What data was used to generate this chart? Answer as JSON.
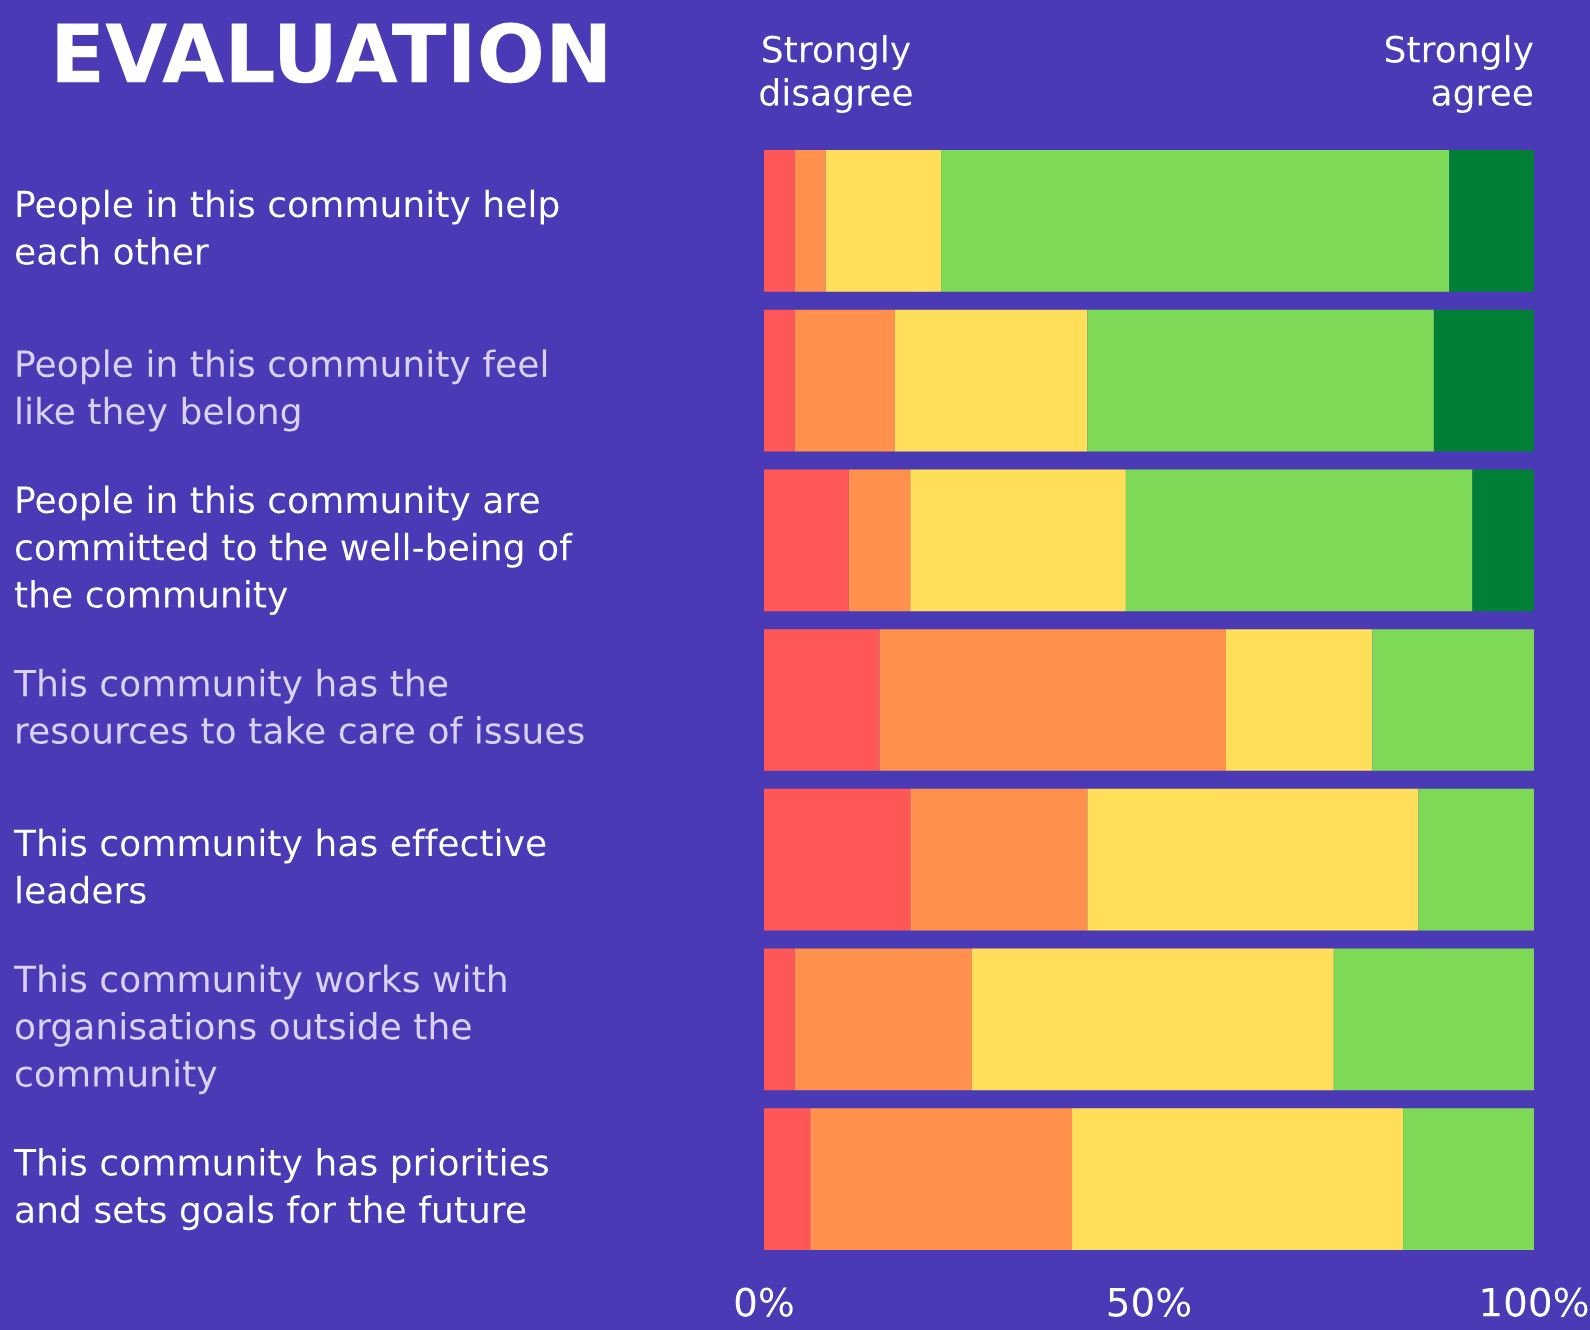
{
  "chart_data": {
    "type": "bar",
    "orientation": "horizontal",
    "stacked": true,
    "title": "EVALUATION",
    "categories": [
      "People in this community help\neach other",
      "People in this community feel\nlike they belong",
      "People in this community are\ncommitted to the well-being of\nthe community",
      "This community has the\nresources to take care of issues",
      "This community has effective\nleaders",
      "This community works with\norganisations outside the\ncommunity",
      "This community has priorities\nand sets goals for the future"
    ],
    "series": [
      {
        "color": "#ff5757",
        "values": [
          4,
          4,
          11,
          15,
          19,
          4,
          6
        ]
      },
      {
        "color": "#ff914d",
        "values": [
          4,
          13,
          8,
          45,
          23,
          23,
          34
        ]
      },
      {
        "color": "#ffde59",
        "values": [
          15,
          25,
          28,
          19,
          43,
          47,
          43
        ]
      },
      {
        "color": "#7ed957",
        "values": [
          66,
          45,
          45,
          21,
          15,
          26,
          17
        ]
      },
      {
        "color": "#008037",
        "values": [
          11,
          13,
          8,
          0,
          0,
          0,
          0
        ]
      }
    ],
    "xlim": [
      0,
      100
    ],
    "xticks": [
      {
        "value": 0,
        "label": "0%"
      },
      {
        "value": 50,
        "label": "50%"
      },
      {
        "value": 100,
        "label": "100%"
      }
    ],
    "annotations": [
      "Strongly\ndisagree",
      "Strongly\nagree"
    ]
  }
}
